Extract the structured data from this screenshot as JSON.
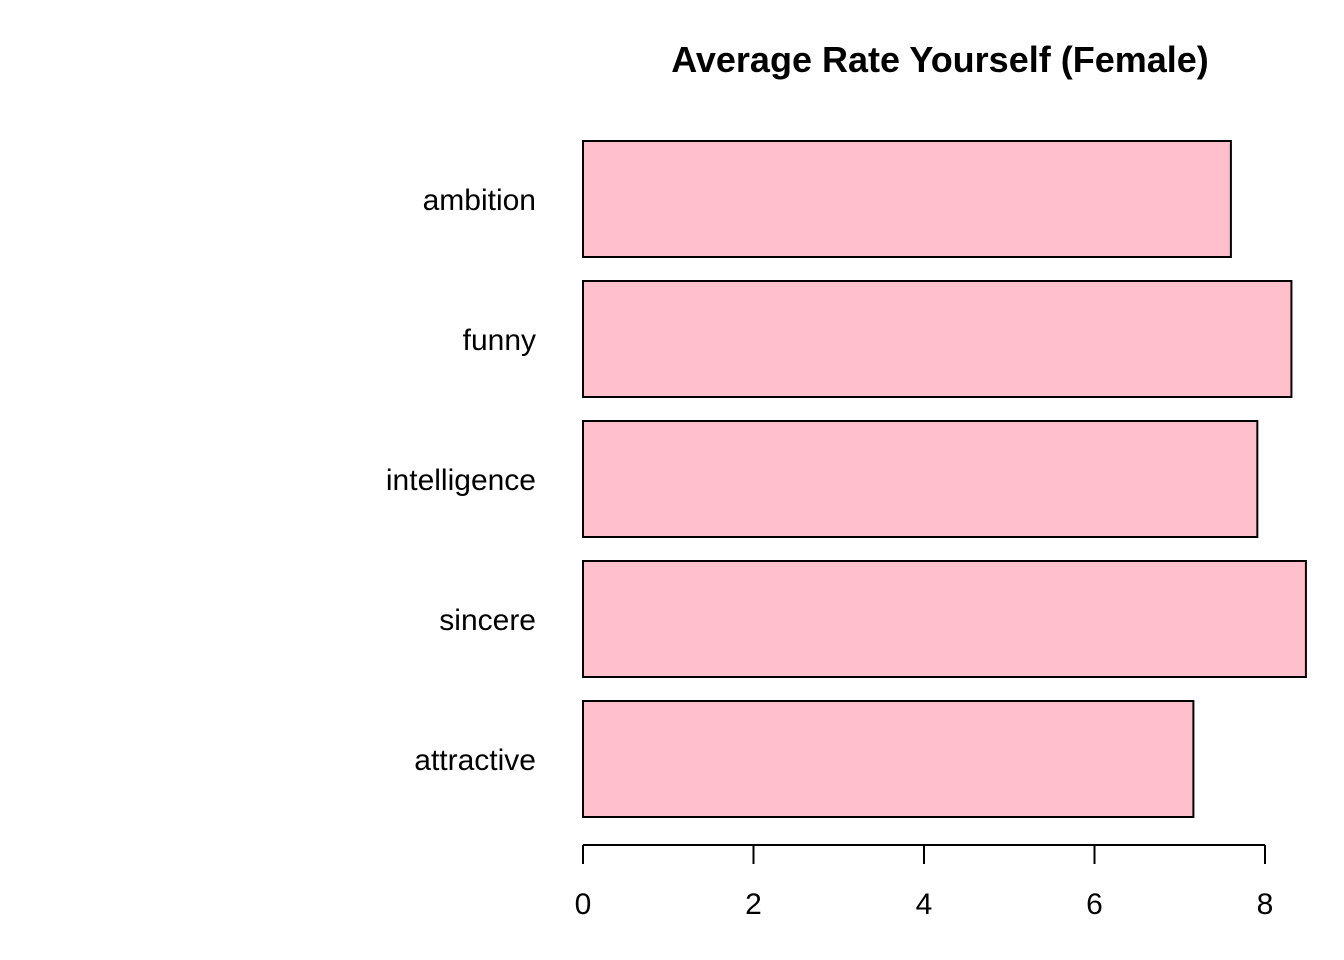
{
  "chart_data": {
    "type": "bar",
    "orientation": "horizontal",
    "title": "Average Rate Yourself (Female)",
    "xlabel": "",
    "ylabel": "",
    "categories": [
      "attractive",
      "sincere",
      "intelligence",
      "funny",
      "ambition"
    ],
    "values": [
      7.16,
      8.48,
      7.91,
      8.31,
      7.6
    ],
    "xlim": [
      0,
      8.48
    ],
    "xticks": [
      0,
      2,
      4,
      6,
      8
    ],
    "grid": false,
    "legend": "none",
    "bar_color": "#ffc0cb",
    "border_color": "#000000"
  }
}
